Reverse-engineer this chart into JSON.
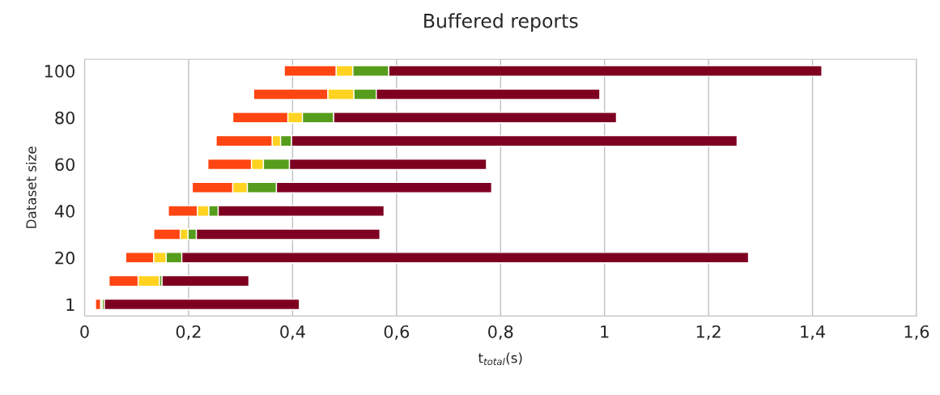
{
  "chart_data": {
    "type": "bar",
    "orientation": "horizontal",
    "title": "Buffered reports",
    "xlabel": "t$_{total}$(s)",
    "ylabel": "Dataset size",
    "categories": [
      "100",
      null,
      "80",
      null,
      "60",
      null,
      "40",
      null,
      "20",
      null,
      "1"
    ],
    "series": [
      {
        "color": "#ff4511",
        "base": [
          0.384,
          0.325,
          0.285,
          0.253,
          0.237,
          0.207,
          0.161,
          0.133,
          0.079,
          0.047,
          0.021
        ],
        "values": [
          0.1,
          0.143,
          0.106,
          0.108,
          0.084,
          0.078,
          0.056,
          0.051,
          0.054,
          0.056,
          0.01
        ]
      },
      {
        "color": "#ffd320",
        "base": [
          0.484,
          0.468,
          0.391,
          0.361,
          0.321,
          0.285,
          0.217,
          0.184,
          0.133,
          0.103,
          0.031
        ],
        "values": [
          0.032,
          0.05,
          0.028,
          0.016,
          0.023,
          0.028,
          0.022,
          0.015,
          0.024,
          0.041,
          0.003
        ]
      },
      {
        "color": "#579d1c",
        "base": [
          0.516,
          0.518,
          0.419,
          0.377,
          0.344,
          0.313,
          0.239,
          0.199,
          0.157,
          0.144,
          0.034
        ],
        "values": [
          0.069,
          0.043,
          0.06,
          0.021,
          0.05,
          0.056,
          0.018,
          0.016,
          0.03,
          0.005,
          0.004
        ]
      },
      {
        "color": "#7e0021",
        "base": [
          0.585,
          0.561,
          0.479,
          0.398,
          0.394,
          0.369,
          0.257,
          0.215,
          0.187,
          0.149,
          0.038
        ],
        "values": [
          0.833,
          0.43,
          0.544,
          0.857,
          0.379,
          0.414,
          0.319,
          0.353,
          1.09,
          0.167,
          0.375
        ]
      }
    ],
    "xlim": [
      0,
      1.6
    ],
    "xticks": [
      0,
      {
        "value": 0.2,
        "label": "0,2"
      },
      {
        "value": 0.4,
        "label": "0,4"
      },
      {
        "value": 0.6,
        "label": "0,6"
      },
      {
        "value": 0.8,
        "label": "0,8"
      },
      1,
      {
        "value": 1.2,
        "label": "1,2"
      },
      {
        "value": 1.4,
        "label": "1,4"
      },
      {
        "value": 1.6,
        "label": "1,6"
      }
    ],
    "grid": "x",
    "legend": false
  }
}
